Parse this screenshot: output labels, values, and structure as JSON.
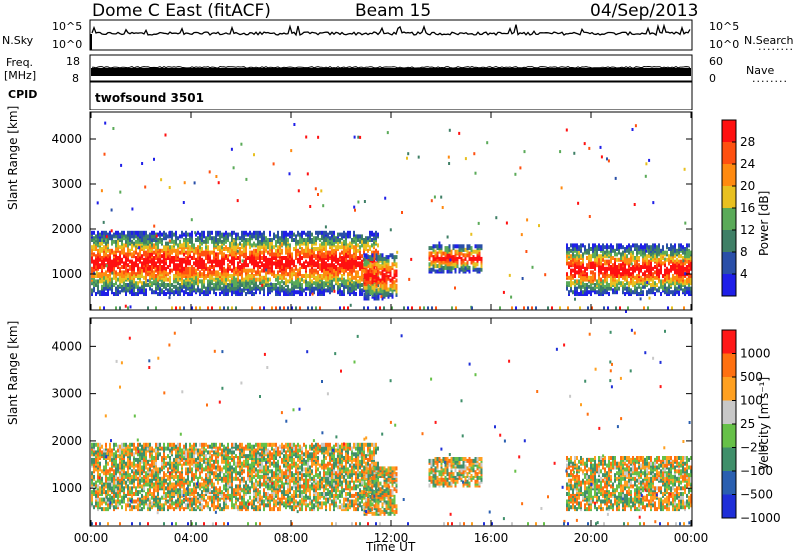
{
  "header": {
    "title": "Dome C East (fitACF)",
    "beam": "Beam 15",
    "date": "04/Sep/2013"
  },
  "top_panels": {
    "nsky_label": "N.Sky",
    "nsky_ticks": [
      "10^5",
      "10^0"
    ],
    "nsearch_label": "N.Search",
    "nsearch_ticks": [
      "10^5",
      "10^0"
    ],
    "freq_label_1": "Freq.",
    "freq_label_2": "[MHz]",
    "freq_ticks": [
      "18",
      "8"
    ],
    "nave_label": "Nave",
    "nave_ticks": [
      "60",
      "0"
    ],
    "cpid_label": "CPID",
    "cpid_value": "twofsound  3501",
    "dots": "........"
  },
  "chart_data": [
    {
      "type": "heatmap",
      "name": "power",
      "ylabel": "Slant Range [km]",
      "ylim": [
        200,
        4600
      ],
      "yticks": [
        "4000",
        "3000",
        "2000",
        "1000"
      ],
      "colorbar_label": "Power [dB]",
      "colorbar_ticks": [
        "28",
        "24",
        "20",
        "16",
        "12",
        "8",
        "4"
      ],
      "colors": [
        "#1f1fe8",
        "#2a4fa8",
        "#3f7f66",
        "#5aaa58",
        "#e8c020",
        "#ff8a10",
        "#ff5010",
        "#ff1010"
      ],
      "x_hours": [
        0,
        4,
        8,
        12,
        16,
        20,
        24
      ],
      "echo_regions": [
        {
          "start_h": 0.0,
          "end_h": 11.5,
          "range_min": 600,
          "range_max": 2000
        },
        {
          "start_h": 10.9,
          "end_h": 12.2,
          "range_min": 500,
          "range_max": 1500
        },
        {
          "start_h": 13.5,
          "end_h": 15.6,
          "range_min": 1100,
          "range_max": 1700
        },
        {
          "start_h": 19.0,
          "end_h": 24.0,
          "range_min": 600,
          "range_max": 1700
        }
      ]
    },
    {
      "type": "heatmap",
      "name": "velocity",
      "ylabel": "Slant Range [km]",
      "xlabel": "Time UT",
      "ylim": [
        200,
        4600
      ],
      "yticks": [
        "4000",
        "3000",
        "2000",
        "1000"
      ],
      "xticks": [
        "00:00",
        "04:00",
        "08:00",
        "12:00",
        "16:00",
        "20:00",
        "00:00"
      ],
      "colorbar_label": "Velocity [m s⁻¹]",
      "colorbar_ticks": [
        "1000",
        "500",
        "100",
        "25",
        "−25",
        "−100",
        "−500",
        "−1000"
      ],
      "colors": [
        "#1f2fd8",
        "#2a5fb0",
        "#3f8f6a",
        "#66c048",
        "#c8c8c8",
        "#ffa020",
        "#ff7010",
        "#ff1818"
      ],
      "x_hours": [
        0,
        4,
        8,
        12,
        16,
        20,
        24
      ],
      "echo_regions": [
        {
          "start_h": 0.0,
          "end_h": 11.5,
          "range_min": 600,
          "range_max": 2000
        },
        {
          "start_h": 10.9,
          "end_h": 12.2,
          "range_min": 500,
          "range_max": 1500
        },
        {
          "start_h": 13.5,
          "end_h": 15.6,
          "range_min": 1100,
          "range_max": 1700
        },
        {
          "start_h": 19.0,
          "end_h": 24.0,
          "range_min": 600,
          "range_max": 1700
        }
      ]
    }
  ]
}
